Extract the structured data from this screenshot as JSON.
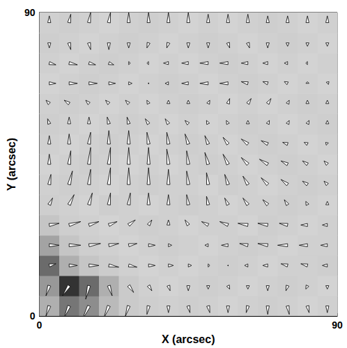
{
  "chart_data": {
    "type": "vector_field",
    "x_label": "X (arcsec)",
    "y_label": "Y (arcsec)",
    "xlim": [
      0,
      90
    ],
    "ylim": [
      0,
      90
    ],
    "xticks": [
      0,
      90
    ],
    "yticks": [
      0,
      90
    ],
    "grid": false,
    "vectors": {
      "x": [
        3,
        9,
        15,
        21,
        27,
        33,
        39,
        45,
        51,
        57,
        63,
        69,
        75,
        81,
        87
      ],
      "y": [
        3,
        9,
        15,
        21,
        27,
        33,
        39,
        45,
        51,
        57,
        63,
        69,
        75,
        81,
        87
      ],
      "dx": [
        [
          -1,
          -1.5,
          -2,
          -1.5,
          -1,
          -0.5,
          0,
          0.5,
          0.5,
          0,
          -0.5,
          0,
          0.5,
          0.5,
          0
        ],
        [
          -1,
          -2,
          -1,
          1,
          1.5,
          1,
          0.5,
          0,
          0,
          0.5,
          0,
          0,
          -0.5,
          -0.5,
          0
        ],
        [
          2,
          2.5,
          3,
          3,
          2.5,
          2,
          1.5,
          1,
          0.5,
          0,
          -1,
          -1.5,
          -2,
          -2,
          -1.5
        ],
        [
          3,
          3.5,
          3.5,
          3,
          2.5,
          2,
          1,
          0,
          -1,
          -2,
          -2.5,
          -3,
          -3,
          -2.5,
          -2
        ],
        [
          3,
          3.5,
          3,
          2.5,
          2,
          1,
          0,
          -1,
          -2,
          -2.5,
          -3,
          -3,
          -2.5,
          -2,
          -1.5
        ],
        [
          1,
          1.5,
          1,
          0.5,
          0.5,
          0,
          0,
          -0.5,
          -0.5,
          -1,
          -1.5,
          -1.5,
          -1,
          -0.5,
          0
        ],
        [
          0.5,
          1,
          0.5,
          0.5,
          0,
          0,
          0,
          -0.5,
          -0.5,
          -1,
          -1.5,
          -2,
          -2,
          -1.5,
          -1
        ],
        [
          0,
          0.5,
          0.5,
          0.5,
          0,
          0,
          -0.5,
          -0.5,
          -1,
          -1.5,
          -2,
          -2.5,
          -2,
          -1.5,
          -1
        ],
        [
          0,
          0,
          0.5,
          0,
          0,
          -0.5,
          -0.5,
          -1,
          -1,
          -1.5,
          -2,
          -2,
          -1.5,
          -1,
          -0.5
        ],
        [
          -0.5,
          0,
          0,
          -0.5,
          -0.5,
          -1,
          -1,
          -1,
          -0.5,
          -0.5,
          0,
          0.5,
          0.5,
          0.5,
          0
        ],
        [
          -1,
          -1.5,
          -1,
          -1,
          -1,
          -0.5,
          0,
          0,
          0.5,
          0.5,
          1,
          1,
          0.5,
          0,
          0
        ],
        [
          2,
          2.5,
          2.5,
          2,
          1,
          0,
          -1,
          -2,
          -2.5,
          -2.5,
          -2,
          -1.5,
          -1,
          0,
          0.5
        ],
        [
          2,
          2.5,
          2,
          1.5,
          0.5,
          -0.5,
          -1.5,
          -2,
          -2.5,
          -2.5,
          -2,
          -1.5,
          -1,
          -0.5,
          0
        ],
        [
          0,
          0.5,
          0.5,
          0,
          0,
          -0.5,
          -0.5,
          0,
          0,
          0.5,
          0.5,
          0,
          0,
          0,
          0
        ],
        [
          0,
          0.5,
          0.5,
          0.5,
          0,
          0,
          0,
          0,
          0,
          0,
          0,
          0,
          0,
          0,
          0
        ]
      ],
      "dy": [
        [
          -3,
          -3.5,
          -4,
          -3.5,
          -3,
          -2.5,
          -2,
          -2,
          -2,
          -2,
          -2,
          -2.5,
          -2.5,
          -2,
          -2
        ],
        [
          -3,
          -3,
          -4,
          -3,
          -2,
          -1.5,
          -1.5,
          -1.5,
          -1,
          -1,
          -1,
          -1.5,
          -1.5,
          -1,
          -1
        ],
        [
          0.5,
          0,
          0,
          -0.5,
          -0.5,
          0,
          0,
          0,
          0,
          0,
          0,
          0,
          0.5,
          0.5,
          0
        ],
        [
          0,
          0,
          0.5,
          0.5,
          0.5,
          0,
          0,
          0,
          0,
          0,
          0.5,
          0.5,
          0,
          0,
          0
        ],
        [
          0.5,
          1,
          1,
          1,
          1.5,
          1.5,
          1.5,
          1.5,
          1,
          1,
          0.5,
          0.5,
          0.5,
          0,
          0
        ],
        [
          2,
          3,
          3.5,
          3.5,
          3.5,
          3.5,
          3,
          3,
          2.5,
          2,
          2,
          1.5,
          1.5,
          1,
          1
        ],
        [
          3,
          4,
          4.5,
          5,
          5,
          5,
          4.5,
          4,
          3.5,
          3,
          2.5,
          2,
          1.5,
          1,
          1
        ],
        [
          3,
          4,
          5,
          5,
          5,
          5,
          4.5,
          4,
          3.5,
          3,
          2,
          1.5,
          1,
          1,
          1
        ],
        [
          2.5,
          3,
          3.5,
          4,
          4,
          3.5,
          3.5,
          3,
          2.5,
          2,
          1.5,
          1,
          0.5,
          0.5,
          0.5
        ],
        [
          1.5,
          2,
          2,
          2,
          2,
          1.5,
          1.5,
          1,
          1,
          1,
          1,
          1,
          1,
          1,
          1
        ],
        [
          1,
          1,
          1,
          1,
          1,
          1,
          1,
          1,
          1,
          1.5,
          1.5,
          1.5,
          1,
          1,
          1
        ],
        [
          0,
          0,
          0,
          0,
          0,
          0,
          0,
          0,
          0,
          0,
          0.5,
          0.5,
          0.5,
          0.5,
          0.5
        ],
        [
          -0.5,
          -0.5,
          -0.5,
          -0.5,
          0,
          0,
          0,
          0,
          0,
          0,
          0,
          0,
          0,
          0,
          0
        ],
        [
          -1.5,
          -2,
          -2,
          -2,
          -1.5,
          -1.5,
          -1.5,
          -1.5,
          -1.5,
          -1.5,
          -1.5,
          -1.5,
          -1,
          -1,
          -1
        ],
        [
          2,
          2.5,
          3,
          3,
          3,
          3,
          3,
          3,
          2.5,
          2.5,
          2.5,
          2,
          2,
          2,
          2
        ]
      ]
    },
    "intensity": {
      "x": [
        3,
        9,
        15,
        21,
        27,
        33,
        39,
        45,
        51,
        57,
        63,
        69,
        75,
        81,
        87
      ],
      "y": [
        3,
        9,
        15,
        21,
        27,
        33,
        39,
        45,
        51,
        57,
        63,
        69,
        75,
        81,
        87
      ],
      "values": [
        [
          0.3,
          0.55,
          0.45,
          0.25,
          0.18,
          0.16,
          0.15,
          0.16,
          0.15,
          0.14,
          0.15,
          0.16,
          0.15,
          0.14,
          0.15
        ],
        [
          0.4,
          0.85,
          0.6,
          0.3,
          0.18,
          0.15,
          0.14,
          0.15,
          0.16,
          0.15,
          0.14,
          0.15,
          0.16,
          0.15,
          0.14
        ],
        [
          0.6,
          0.3,
          0.2,
          0.17,
          0.15,
          0.14,
          0.15,
          0.14,
          0.15,
          0.16,
          0.15,
          0.14,
          0.15,
          0.15,
          0.16
        ],
        [
          0.35,
          0.2,
          0.16,
          0.15,
          0.14,
          0.15,
          0.16,
          0.15,
          0.14,
          0.15,
          0.16,
          0.15,
          0.14,
          0.15,
          0.15
        ],
        [
          0.2,
          0.16,
          0.15,
          0.14,
          0.15,
          0.16,
          0.15,
          0.14,
          0.15,
          0.15,
          0.14,
          0.16,
          0.15,
          0.14,
          0.15
        ],
        [
          0.16,
          0.15,
          0.14,
          0.16,
          0.15,
          0.14,
          0.15,
          0.16,
          0.15,
          0.14,
          0.15,
          0.15,
          0.16,
          0.15,
          0.14
        ],
        [
          0.15,
          0.16,
          0.15,
          0.14,
          0.15,
          0.16,
          0.15,
          0.15,
          0.14,
          0.16,
          0.15,
          0.14,
          0.15,
          0.16,
          0.15
        ],
        [
          0.14,
          0.15,
          0.16,
          0.15,
          0.14,
          0.15,
          0.14,
          0.15,
          0.16,
          0.15,
          0.14,
          0.15,
          0.16,
          0.15,
          0.14
        ],
        [
          0.15,
          0.14,
          0.15,
          0.16,
          0.15,
          0.14,
          0.15,
          0.16,
          0.15,
          0.14,
          0.15,
          0.16,
          0.15,
          0.14,
          0.15
        ],
        [
          0.16,
          0.15,
          0.14,
          0.15,
          0.16,
          0.15,
          0.14,
          0.15,
          0.14,
          0.15,
          0.16,
          0.15,
          0.14,
          0.15,
          0.16
        ],
        [
          0.15,
          0.16,
          0.15,
          0.14,
          0.15,
          0.14,
          0.15,
          0.16,
          0.15,
          0.14,
          0.15,
          0.14,
          0.15,
          0.16,
          0.15
        ],
        [
          0.14,
          0.15,
          0.16,
          0.15,
          0.14,
          0.15,
          0.16,
          0.15,
          0.14,
          0.15,
          0.16,
          0.15,
          0.14,
          0.15,
          0.14
        ],
        [
          0.15,
          0.14,
          0.15,
          0.16,
          0.15,
          0.14,
          0.15,
          0.14,
          0.15,
          0.16,
          0.15,
          0.14,
          0.15,
          0.14,
          0.15
        ],
        [
          0.16,
          0.15,
          0.14,
          0.15,
          0.16,
          0.15,
          0.14,
          0.15,
          0.16,
          0.15,
          0.14,
          0.15,
          0.16,
          0.15,
          0.14
        ],
        [
          0.15,
          0.16,
          0.15,
          0.14,
          0.15,
          0.16,
          0.15,
          0.14,
          0.15,
          0.14,
          0.15,
          0.16,
          0.15,
          0.14,
          0.15
        ]
      ]
    },
    "intensity_range": [
      0,
      1
    ]
  }
}
